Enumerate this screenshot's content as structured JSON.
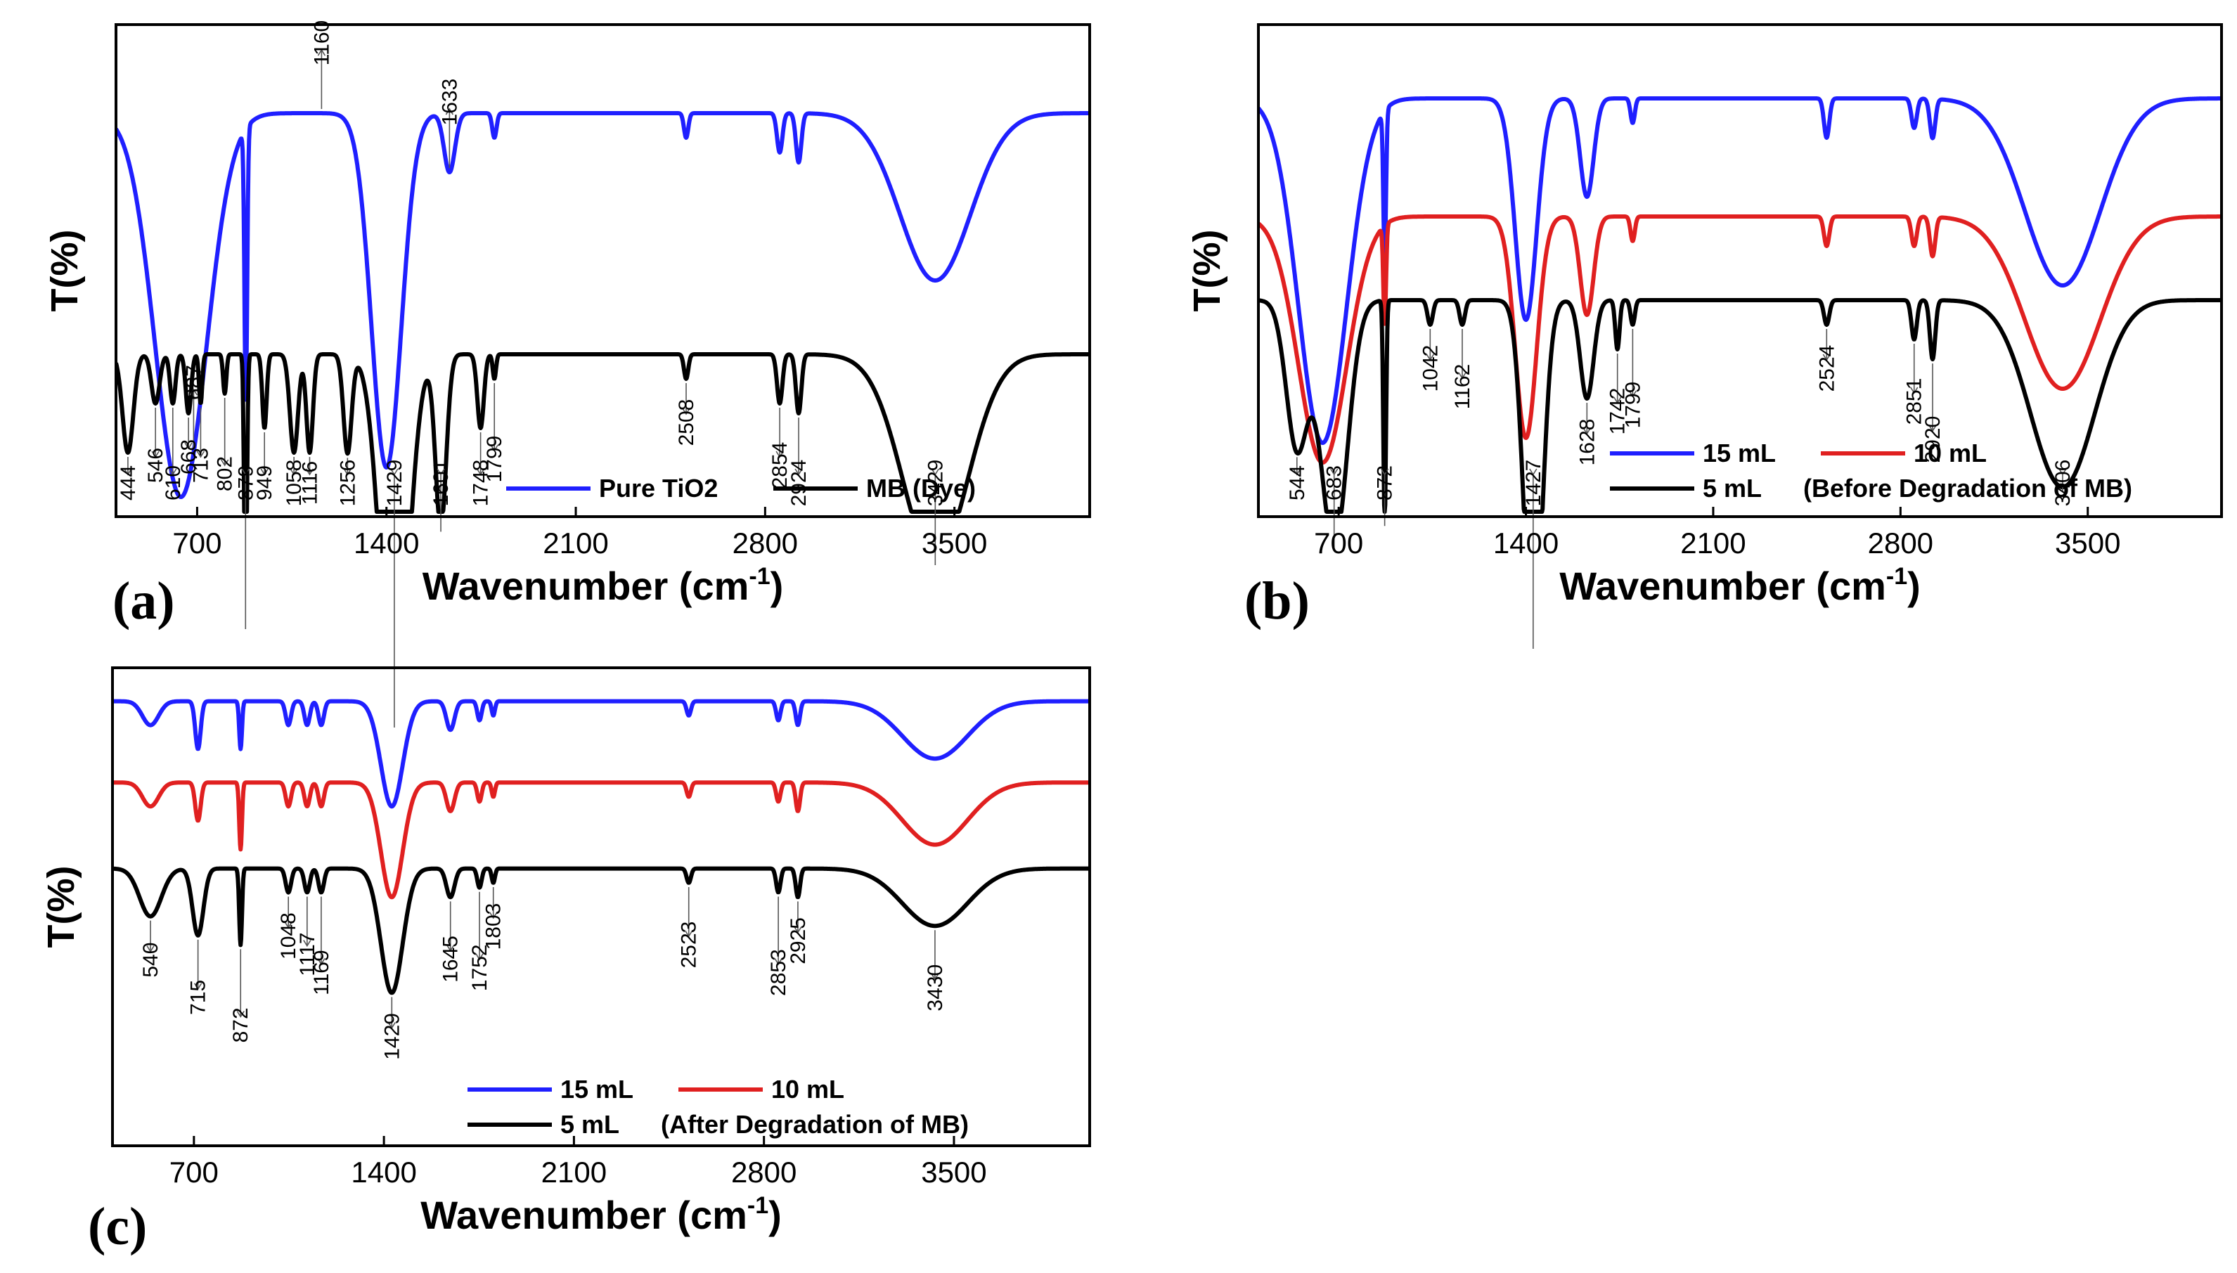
{
  "chart_data": [
    {
      "panel": "(a)",
      "type": "line",
      "title": "",
      "xlabel": "Wavenumber (cm",
      "xlabel_sup": "-1",
      "xlabel_tail": ")",
      "ylabel": "T(%)",
      "xlim": [
        400,
        4000
      ],
      "xticks": [
        700,
        1400,
        2100,
        2800,
        3500
      ],
      "ylim": [
        0,
        1
      ],
      "legend": {
        "position": "bottom-right",
        "text": ""
      },
      "series": [
        {
          "name": "Pure TiO2",
          "color": "#1f1fff",
          "offset": 0.82,
          "baseline": 0.16,
          "bands": [
            [
              640,
              0.78,
              95
            ],
            [
              880,
              0.55,
              5
            ],
            [
              1400,
              0.72,
              55
            ],
            [
              1633,
              0.12,
              20
            ],
            [
              1799,
              0.05,
              8
            ],
            [
              2508,
              0.05,
              8
            ],
            [
              2854,
              0.08,
              10
            ],
            [
              2924,
              0.1,
              10
            ],
            [
              3429,
              0.34,
              130
            ]
          ]
        },
        {
          "name": "MB (Dye)",
          "color": "#000000",
          "offset": 0.33,
          "baseline": 0.03,
          "bands": [
            [
              444,
              0.2,
              20
            ],
            [
              546,
              0.1,
              15
            ],
            [
              610,
              0.1,
              10
            ],
            [
              668,
              0.12,
              10
            ],
            [
              713,
              0.1,
              6
            ],
            [
              802,
              0.08,
              6
            ],
            [
              879,
              0.55,
              5
            ],
            [
              949,
              0.15,
              8
            ],
            [
              1058,
              0.2,
              15
            ],
            [
              1116,
              0.2,
              12
            ],
            [
              1256,
              0.2,
              15
            ],
            [
              1429,
              0.75,
              50
            ],
            [
              1601,
              0.35,
              20
            ],
            [
              1748,
              0.15,
              12
            ],
            [
              1799,
              0.05,
              6
            ],
            [
              2508,
              0.05,
              8
            ],
            [
              2854,
              0.1,
              10
            ],
            [
              2924,
              0.12,
              10
            ],
            [
              3429,
              0.42,
              120
            ]
          ]
        }
      ],
      "annotations": [
        {
          "label": "687",
          "x": 687,
          "series": 0,
          "place": "above"
        },
        {
          "label": "1160",
          "x": 1160,
          "series": 0,
          "place": "above"
        },
        {
          "label": "1633",
          "x": 1633,
          "series": 0,
          "place": "above"
        },
        {
          "label": "444",
          "x": 444,
          "series": 1,
          "place": "below"
        },
        {
          "label": "546",
          "x": 546,
          "series": 1,
          "place": "below"
        },
        {
          "label": "610",
          "x": 610,
          "series": 1,
          "place": "below"
        },
        {
          "label": "668",
          "x": 668,
          "series": 1,
          "place": "below"
        },
        {
          "label": "713",
          "x": 713,
          "series": 1,
          "place": "below"
        },
        {
          "label": "802",
          "x": 802,
          "series": 1,
          "place": "below"
        },
        {
          "label": "879",
          "x": 879,
          "series": 1,
          "place": "below"
        },
        {
          "label": "949",
          "x": 949,
          "series": 1,
          "place": "below"
        },
        {
          "label": "1058",
          "x": 1058,
          "series": 1,
          "place": "below"
        },
        {
          "label": "1116",
          "x": 1116,
          "series": 1,
          "place": "below"
        },
        {
          "label": "1256",
          "x": 1256,
          "series": 1,
          "place": "below"
        },
        {
          "label": "1429",
          "x": 1429,
          "series": 1,
          "place": "below"
        },
        {
          "label": "1601",
          "x": 1601,
          "series": 1,
          "place": "below"
        },
        {
          "label": "1748",
          "x": 1748,
          "series": 1,
          "place": "below"
        },
        {
          "label": "1799",
          "x": 1799,
          "series": 1,
          "place": "below"
        },
        {
          "label": "2508",
          "x": 2508,
          "series": 1,
          "place": "below"
        },
        {
          "label": "2854",
          "x": 2854,
          "series": 1,
          "place": "below"
        },
        {
          "label": "2924",
          "x": 2924,
          "series": 1,
          "place": "below"
        },
        {
          "label": "3429",
          "x": 3429,
          "series": 1,
          "place": "below"
        }
      ]
    },
    {
      "panel": "(b)",
      "type": "line",
      "title": "",
      "xlabel": "Wavenumber (cm",
      "xlabel_sup": "-1",
      "xlabel_tail": ")",
      "ylabel": "T(%)",
      "xlim": [
        400,
        4000
      ],
      "xticks": [
        700,
        1400,
        2100,
        2800,
        3500
      ],
      "ylim": [
        0,
        1
      ],
      "legend": {
        "position": "bottom-right",
        "text": "(Before Degradation of MB)"
      },
      "series": [
        {
          "name": "15 mL",
          "color": "#1f1fff",
          "offset": 0.85,
          "baseline": 0.08,
          "bands": [
            [
              640,
              0.7,
              90
            ],
            [
              872,
              0.3,
              5
            ],
            [
              1400,
              0.45,
              40
            ],
            [
              1628,
              0.2,
              25
            ],
            [
              1799,
              0.05,
              8
            ],
            [
              2524,
              0.08,
              10
            ],
            [
              2851,
              0.06,
              10
            ],
            [
              2920,
              0.08,
              10
            ],
            [
              3406,
              0.38,
              140
            ]
          ]
        },
        {
          "name": "10 mL",
          "color": "#e02020",
          "offset": 0.61,
          "baseline": -0.1,
          "bands": [
            [
              640,
              0.5,
              90
            ],
            [
              872,
              0.2,
              5
            ],
            [
              1400,
              0.45,
              40
            ],
            [
              1628,
              0.2,
              25
            ],
            [
              1799,
              0.05,
              8
            ],
            [
              2524,
              0.06,
              10
            ],
            [
              2851,
              0.06,
              10
            ],
            [
              2920,
              0.08,
              10
            ],
            [
              3406,
              0.35,
              140
            ]
          ]
        },
        {
          "name": "5 mL",
          "color": "#000000",
          "offset": 0.44,
          "baseline": 0.0,
          "bands": [
            [
              544,
              0.3,
              40
            ],
            [
              683,
              0.5,
              50
            ],
            [
              872,
              0.45,
              5
            ],
            [
              1042,
              0.05,
              10
            ],
            [
              1162,
              0.05,
              10
            ],
            [
              1427,
              0.7,
              35
            ],
            [
              1628,
              0.2,
              25
            ],
            [
              1742,
              0.1,
              8
            ],
            [
              1799,
              0.05,
              8
            ],
            [
              2524,
              0.05,
              10
            ],
            [
              2851,
              0.08,
              10
            ],
            [
              2920,
              0.12,
              10
            ],
            [
              3406,
              0.38,
              120
            ]
          ]
        }
      ],
      "annotations": [
        {
          "label": "544",
          "x": 544,
          "series": 2,
          "place": "below"
        },
        {
          "label": "683",
          "x": 683,
          "series": 2,
          "place": "below"
        },
        {
          "label": "872",
          "x": 872,
          "series": 2,
          "place": "below"
        },
        {
          "label": "1042",
          "x": 1042,
          "series": 2,
          "place": "below"
        },
        {
          "label": "1162",
          "x": 1162,
          "series": 2,
          "place": "below"
        },
        {
          "label": "1427",
          "x": 1427,
          "series": 2,
          "place": "below"
        },
        {
          "label": "1628",
          "x": 1628,
          "series": 2,
          "place": "below"
        },
        {
          "label": "1742",
          "x": 1742,
          "series": 2,
          "place": "below"
        },
        {
          "label": "1799",
          "x": 1799,
          "series": 2,
          "place": "below"
        },
        {
          "label": "2524",
          "x": 2524,
          "series": 2,
          "place": "below"
        },
        {
          "label": "2851",
          "x": 2851,
          "series": 2,
          "place": "below"
        },
        {
          "label": "2920",
          "x": 2920,
          "series": 2,
          "place": "below"
        },
        {
          "label": "3406",
          "x": 3406,
          "series": 2,
          "place": "below"
        }
      ]
    },
    {
      "panel": "(c)",
      "type": "line",
      "title": "",
      "xlabel": "Wavenumber (cm",
      "xlabel_sup": "-1",
      "xlabel_tail": ")",
      "ylabel": "T(%)",
      "xlim": [
        400,
        4000
      ],
      "xticks": [
        700,
        1400,
        2100,
        2800,
        3500
      ],
      "ylim": [
        0,
        1
      ],
      "legend": {
        "position": "bottom-right",
        "text": "(After Degradation of MB)"
      },
      "series": [
        {
          "name": "15 mL",
          "color": "#1f1fff",
          "offset": 0.93,
          "baseline": 0.04,
          "bands": [
            [
              540,
              0.05,
              30
            ],
            [
              715,
              0.1,
              10
            ],
            [
              872,
              0.1,
              5
            ],
            [
              1048,
              0.05,
              10
            ],
            [
              1117,
              0.05,
              10
            ],
            [
              1169,
              0.05,
              10
            ],
            [
              1429,
              0.22,
              40
            ],
            [
              1645,
              0.06,
              15
            ],
            [
              1752,
              0.04,
              8
            ],
            [
              1803,
              0.03,
              6
            ],
            [
              2523,
              0.03,
              8
            ],
            [
              2853,
              0.04,
              8
            ],
            [
              2925,
              0.05,
              8
            ],
            [
              3430,
              0.12,
              120
            ]
          ]
        },
        {
          "name": "10 mL",
          "color": "#e02020",
          "offset": 0.76,
          "baseline": 0.02,
          "bands": [
            [
              540,
              0.05,
              30
            ],
            [
              715,
              0.08,
              10
            ],
            [
              872,
              0.14,
              5
            ],
            [
              1048,
              0.05,
              10
            ],
            [
              1117,
              0.05,
              10
            ],
            [
              1169,
              0.05,
              10
            ],
            [
              1429,
              0.24,
              40
            ],
            [
              1645,
              0.06,
              15
            ],
            [
              1752,
              0.04,
              8
            ],
            [
              1803,
              0.03,
              6
            ],
            [
              2523,
              0.03,
              8
            ],
            [
              2853,
              0.04,
              8
            ],
            [
              2925,
              0.06,
              8
            ],
            [
              3430,
              0.13,
              120
            ]
          ]
        },
        {
          "name": "5 mL",
          "color": "#000000",
          "offset": 0.58,
          "baseline": -0.02,
          "bands": [
            [
              540,
              0.1,
              40
            ],
            [
              715,
              0.14,
              20
            ],
            [
              872,
              0.16,
              5
            ],
            [
              1048,
              0.05,
              10
            ],
            [
              1117,
              0.05,
              10
            ],
            [
              1169,
              0.05,
              10
            ],
            [
              1429,
              0.26,
              40
            ],
            [
              1645,
              0.06,
              15
            ],
            [
              1752,
              0.04,
              8
            ],
            [
              1803,
              0.03,
              6
            ],
            [
              2523,
              0.03,
              8
            ],
            [
              2853,
              0.05,
              8
            ],
            [
              2925,
              0.06,
              8
            ],
            [
              3430,
              0.12,
              120
            ]
          ]
        }
      ],
      "annotations": [
        {
          "label": "540",
          "x": 540,
          "series": 2,
          "place": "below"
        },
        {
          "label": "715",
          "x": 715,
          "series": 2,
          "place": "below"
        },
        {
          "label": "872",
          "x": 872,
          "series": 2,
          "place": "below"
        },
        {
          "label": "1048",
          "x": 1048,
          "series": 2,
          "place": "below"
        },
        {
          "label": "1117",
          "x": 1117,
          "series": 2,
          "place": "below"
        },
        {
          "label": "1169",
          "x": 1169,
          "series": 2,
          "place": "below"
        },
        {
          "label": "1429",
          "x": 1429,
          "series": 2,
          "place": "below"
        },
        {
          "label": "1645",
          "x": 1645,
          "series": 2,
          "place": "below"
        },
        {
          "label": "1752",
          "x": 1752,
          "series": 2,
          "place": "below"
        },
        {
          "label": "1803",
          "x": 1803,
          "series": 2,
          "place": "below"
        },
        {
          "label": "2523",
          "x": 2523,
          "series": 2,
          "place": "below"
        },
        {
          "label": "2853",
          "x": 2853,
          "series": 2,
          "place": "below"
        },
        {
          "label": "2925",
          "x": 2925,
          "series": 2,
          "place": "below"
        },
        {
          "label": "3430",
          "x": 3430,
          "series": 2,
          "place": "below"
        }
      ]
    }
  ]
}
